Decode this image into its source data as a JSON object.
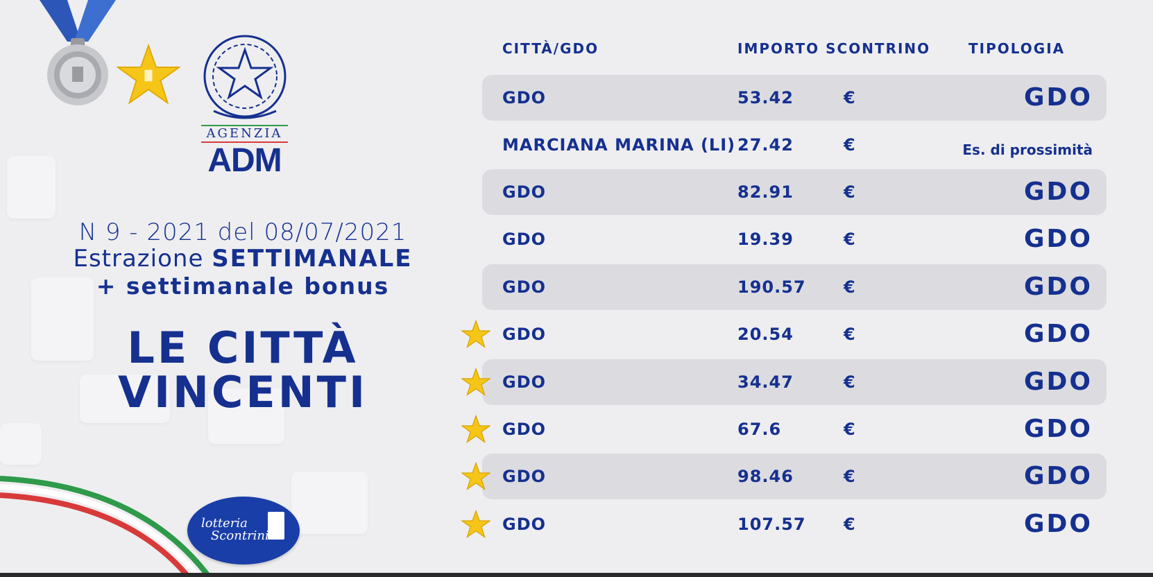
{
  "header": {
    "agency_label": "AGENZIA",
    "agency_acronym": "ADM"
  },
  "draw": {
    "line1": "N 9 - 2021 del 08/07/2021",
    "line2_prefix": "Estrazione ",
    "line2_bold": "SETTIMANALE",
    "line3": "+ settimanale bonus",
    "title_line1": "LE CITTÀ",
    "title_line2": "VINCENTI"
  },
  "brand": {
    "lottery_line1": "lotteria",
    "lottery_line2": "Scontrini"
  },
  "table": {
    "headers": {
      "city": "CITTÀ/GDO",
      "amount": "IMPORTO SCONTRINO",
      "type": "TIPOLOGIA"
    },
    "rows": [
      {
        "city": "GDO",
        "amount": "53.42",
        "currency": "€",
        "type": "GDO",
        "star": false,
        "shaded": true
      },
      {
        "city": "MARCIANA MARINA (LI)",
        "amount": "27.42",
        "currency": "€",
        "type": "Es. di prossimità",
        "star": false,
        "shaded": false
      },
      {
        "city": "GDO",
        "amount": "82.91",
        "currency": "€",
        "type": "GDO",
        "star": false,
        "shaded": true
      },
      {
        "city": "GDO",
        "amount": "19.39",
        "currency": "€",
        "type": "GDO",
        "star": false,
        "shaded": false
      },
      {
        "city": "GDO",
        "amount": "190.57",
        "currency": "€",
        "type": "GDO",
        "star": false,
        "shaded": true
      },
      {
        "city": "GDO",
        "amount": "20.54",
        "currency": "€",
        "type": "GDO",
        "star": true,
        "shaded": false
      },
      {
        "city": "GDO",
        "amount": "34.47",
        "currency": "€",
        "type": "GDO",
        "star": true,
        "shaded": true
      },
      {
        "city": "GDO",
        "amount": "67.6",
        "currency": "€",
        "type": "GDO",
        "star": true,
        "shaded": false
      },
      {
        "city": "GDO",
        "amount": "98.46",
        "currency": "€",
        "type": "GDO",
        "star": true,
        "shaded": true
      },
      {
        "city": "GDO",
        "amount": "107.57",
        "currency": "€",
        "type": "GDO",
        "star": true,
        "shaded": false
      }
    ]
  },
  "colors": {
    "primary": "#15308f",
    "row_shade": "#dcdce0",
    "background": "#eeeef0",
    "star_gold": "#f5c518"
  },
  "icons": [
    "silver-medal-icon",
    "gold-star-icon",
    "republic-emblem-icon",
    "italian-flag-ribbon",
    "lottery-logo"
  ]
}
